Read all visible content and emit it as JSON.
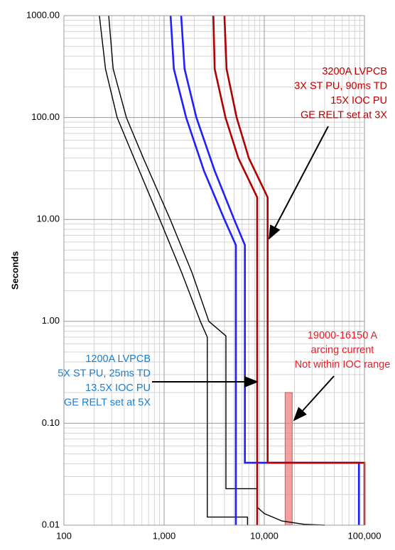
{
  "chart_data": {
    "type": "line",
    "x_scale": "log",
    "y_scale": "log",
    "y_label": "Seconds",
    "xlim": [
      100,
      100000
    ],
    "ylim": [
      0.01,
      1000
    ],
    "xticks": [
      100,
      {
        "value": 1000,
        "label": "1,000"
      },
      {
        "value": 10000,
        "label": "10,000"
      },
      {
        "value": 100000,
        "label": "100,000"
      }
    ],
    "yticks": [
      {
        "value": 0.01,
        "label": "0.01"
      },
      {
        "value": 0.1,
        "label": "0.10"
      },
      {
        "value": 1,
        "label": "1.00"
      },
      {
        "value": 10,
        "label": "10.00"
      },
      {
        "value": 100,
        "label": "100.00"
      },
      {
        "value": 1000,
        "label": "1000.00"
      }
    ],
    "grid": true,
    "minor_grid": true,
    "series": [
      {
        "color": "#000000",
        "width": 1.4,
        "x": [
          226,
          260,
          340,
          500,
          905,
          1500,
          2300,
          2700,
          2700,
          6800,
          6800
        ],
        "y": [
          1000,
          300,
          100,
          40,
          10,
          3,
          1,
          0.7,
          0.012,
          0.012,
          0.01
        ]
      },
      {
        "color": "#000000",
        "width": 1.4,
        "x": [
          280,
          310,
          420,
          620,
          1150,
          1900,
          2800,
          4140,
          4140,
          8500,
          8500,
          10000,
          15000,
          25000,
          40000
        ],
        "y": [
          1000,
          300,
          100,
          40,
          10,
          3,
          1,
          0.72,
          0.0228,
          0.0228,
          0.015,
          0.013,
          0.011,
          0.0102,
          0.01
        ]
      },
      {
        "color": "#1f1fff",
        "width": 2.6,
        "x": [
          1160,
          1250,
          1660,
          2500,
          4000,
          5200,
          5200
        ],
        "y": [
          1000,
          300,
          100,
          30,
          10,
          5.6,
          0.01
        ]
      },
      {
        "color": "#1f1fff",
        "width": 2.6,
        "x": [
          1480,
          1600,
          2100,
          3200,
          5000,
          6400,
          6400,
          88000,
          88000
        ],
        "y": [
          1000,
          300,
          100,
          30,
          10,
          5.6,
          0.041,
          0.041,
          0.01
        ]
      },
      {
        "color": "#b00000",
        "width": 2.6,
        "x": [
          3100,
          3200,
          4100,
          5500,
          8500,
          8500
        ],
        "y": [
          1000,
          300,
          100,
          40,
          16.5,
          0.01
        ]
      },
      {
        "color": "#b00000",
        "width": 2.6,
        "x": [
          4000,
          4200,
          5300,
          7000,
          10800,
          10800,
          100000,
          100000
        ],
        "y": [
          1000,
          300,
          100,
          40,
          16.5,
          0.041,
          0.041,
          0.01
        ]
      }
    ],
    "band": {
      "color": "#f08080",
      "x": [
        16150,
        19000
      ],
      "y": [
        0.01,
        0.2
      ]
    },
    "annotations": [
      {
        "color": "#c00000",
        "lines": [
          "3200A LVPCB",
          "3X ST PU, 90ms TD",
          "15X IOC PU",
          "GE RELT set at 3X"
        ]
      },
      {
        "color": "#e8202a",
        "lines": [
          "19000-16150 A",
          "arcing current",
          "Not within IOC range"
        ]
      },
      {
        "color": "#1a7fd0",
        "lines": [
          "1200A LVPCB",
          "5X ST PU, 25ms TD",
          "13.5X IOC PU",
          "GE RELT set at 5X"
        ]
      }
    ]
  }
}
